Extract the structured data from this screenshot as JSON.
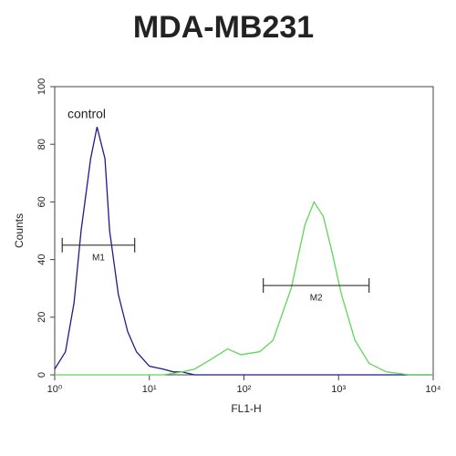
{
  "chart_data": {
    "type": "line",
    "title": "MDA-MB231",
    "x_label": "FL1-H",
    "y_label": "Counts",
    "x_scale": "log",
    "xlim": [
      1,
      10000
    ],
    "ylim": [
      0,
      100
    ],
    "xticks": [
      {
        "value": 1,
        "label": "10⁰"
      },
      {
        "value": 10,
        "label": "10¹"
      },
      {
        "value": 100,
        "label": "10²"
      },
      {
        "value": 1000,
        "label": "10³"
      },
      {
        "value": 10000,
        "label": "10⁴"
      }
    ],
    "yticks": [
      0,
      20,
      40,
      60,
      80,
      100
    ],
    "x": [
      1,
      1.3,
      1.6,
      1.9,
      2.4,
      2.8,
      3.4,
      3.8,
      4.7,
      5.9,
      7.3,
      10,
      14,
      18,
      22,
      30,
      43,
      67,
      93,
      146,
      203,
      316,
      440,
      550,
      690,
      860,
      1070,
      1490,
      2100,
      3200,
      5600,
      10000
    ],
    "series": [
      {
        "color": "#1c1c8a",
        "values": [
          2,
          8,
          25,
          50,
          75,
          86,
          75,
          50,
          28,
          15,
          8,
          3,
          2,
          1,
          1,
          0,
          0,
          0,
          0,
          0,
          0,
          0,
          0,
          0,
          0,
          0,
          0,
          0,
          0,
          0,
          0,
          0
        ]
      },
      {
        "color": "#5fd65a",
        "values": [
          0,
          0,
          0,
          0,
          0,
          0,
          0,
          0,
          0,
          0,
          0,
          0,
          0,
          0.5,
          1,
          2,
          5,
          9,
          7,
          8,
          12,
          30,
          52,
          60,
          55,
          42,
          28,
          12,
          4,
          1,
          0,
          0
        ]
      }
    ],
    "annotation": "control",
    "markers": [
      {
        "label": "M1",
        "x": [
          1.2,
          7
        ],
        "y": 45
      },
      {
        "label": "M2",
        "x": [
          160,
          2100
        ],
        "y": 31
      }
    ]
  }
}
